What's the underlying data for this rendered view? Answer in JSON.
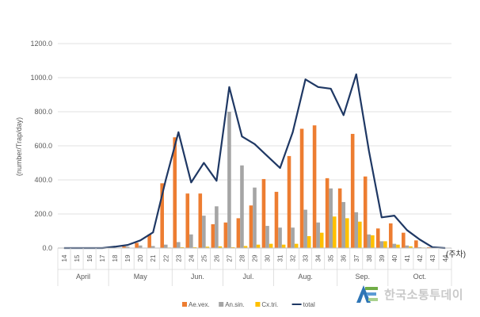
{
  "chart_data": {
    "type": "bar",
    "ylabel": "(number/Trap/day)",
    "x_unit_label": "(주차)",
    "ylim": [
      0,
      1200
    ],
    "yticks": [
      "0.0",
      "200.0",
      "400.0",
      "600.0",
      "800.0",
      "1000.0",
      "1200.0"
    ],
    "grid": true,
    "legend_position": "bottom",
    "categories": [
      "14",
      "15",
      "16",
      "17",
      "18",
      "19",
      "20",
      "21",
      "22",
      "23",
      "24",
      "25",
      "26",
      "27",
      "28",
      "29",
      "30",
      "31",
      "32",
      "33",
      "34",
      "35",
      "36",
      "37",
      "38",
      "39",
      "40",
      "41",
      "42",
      "43",
      "44"
    ],
    "months": [
      {
        "label": "April",
        "from": "14",
        "to": "17"
      },
      {
        "label": "May",
        "from": "18",
        "to": "22"
      },
      {
        "label": "Jun.",
        "from": "23",
        "to": "26"
      },
      {
        "label": "Jul.",
        "from": "27",
        "to": "30"
      },
      {
        "label": "Aug.",
        "from": "31",
        "to": "35"
      },
      {
        "label": "Sep.",
        "from": "36",
        "to": "39"
      },
      {
        "label": "Oct.",
        "from": "40",
        "to": "44"
      }
    ],
    "series": [
      {
        "name": "Ae.vex.",
        "type": "bar",
        "color": "#ed7d31",
        "values": [
          0,
          0,
          0,
          0,
          5,
          10,
          30,
          80,
          380,
          650,
          320,
          320,
          140,
          150,
          175,
          250,
          405,
          330,
          540,
          700,
          720,
          410,
          350,
          670,
          420,
          115,
          145,
          90,
          45,
          5,
          0
        ]
      },
      {
        "name": "An.sin.",
        "type": "bar",
        "color": "#a5a5a5",
        "values": [
          0,
          0,
          0,
          0,
          3,
          8,
          15,
          12,
          20,
          35,
          80,
          190,
          245,
          800,
          485,
          355,
          130,
          120,
          120,
          225,
          150,
          350,
          270,
          210,
          80,
          40,
          25,
          15,
          5,
          0,
          0
        ]
      },
      {
        "name": "Cx.tri.",
        "type": "bar",
        "color": "#ffc000",
        "values": [
          0,
          0,
          0,
          0,
          0,
          0,
          2,
          2,
          3,
          5,
          5,
          8,
          10,
          5,
          12,
          20,
          25,
          20,
          25,
          70,
          90,
          185,
          175,
          155,
          75,
          40,
          20,
          10,
          3,
          0,
          0
        ]
      },
      {
        "name": "total",
        "type": "line",
        "color": "#1f3864",
        "values": [
          0,
          0,
          0,
          0,
          8,
          18,
          45,
          92,
          400,
          680,
          385,
          500,
          395,
          945,
          655,
          610,
          540,
          470,
          680,
          990,
          945,
          935,
          780,
          1020,
          570,
          180,
          190,
          105,
          50,
          5,
          0
        ]
      }
    ]
  },
  "watermark": {
    "text": "한국소통투데이",
    "icon": "company-logo-icon"
  }
}
